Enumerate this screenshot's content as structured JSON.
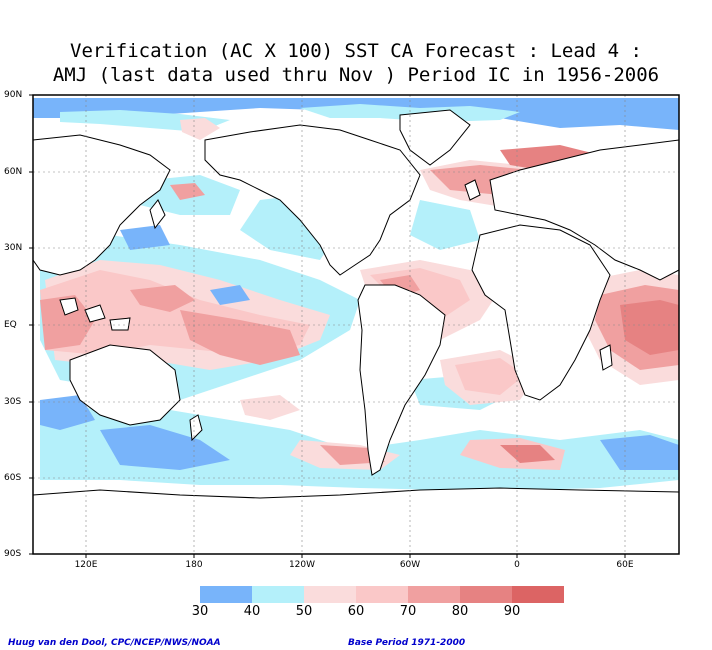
{
  "title": {
    "line1": "Verification (AC X 100) SST CA Forecast : Lead 4 :",
    "line2": "AMJ (last data used thru Nov ) Period IC in 1956-2006"
  },
  "axes": {
    "lat_labels": [
      "90N",
      "60N",
      "30N",
      "EQ",
      "30S",
      "60S",
      "90S"
    ],
    "lon_labels": [
      "120E",
      "180",
      "120W",
      "60W",
      "0",
      "60E"
    ]
  },
  "colorbar": {
    "labels": [
      "30",
      "40",
      "50",
      "60",
      "70",
      "80",
      "90"
    ],
    "colors": [
      "#78b4fa",
      "#b4f0fa",
      "#fadcdc",
      "#fac8c8",
      "#f0a0a0",
      "#e68282",
      "#dc6464"
    ]
  },
  "footer": {
    "left": "Huug van den Dool, CPC/NCEP/NWS/NOAA",
    "right": "Base Period 1971-2000"
  }
}
